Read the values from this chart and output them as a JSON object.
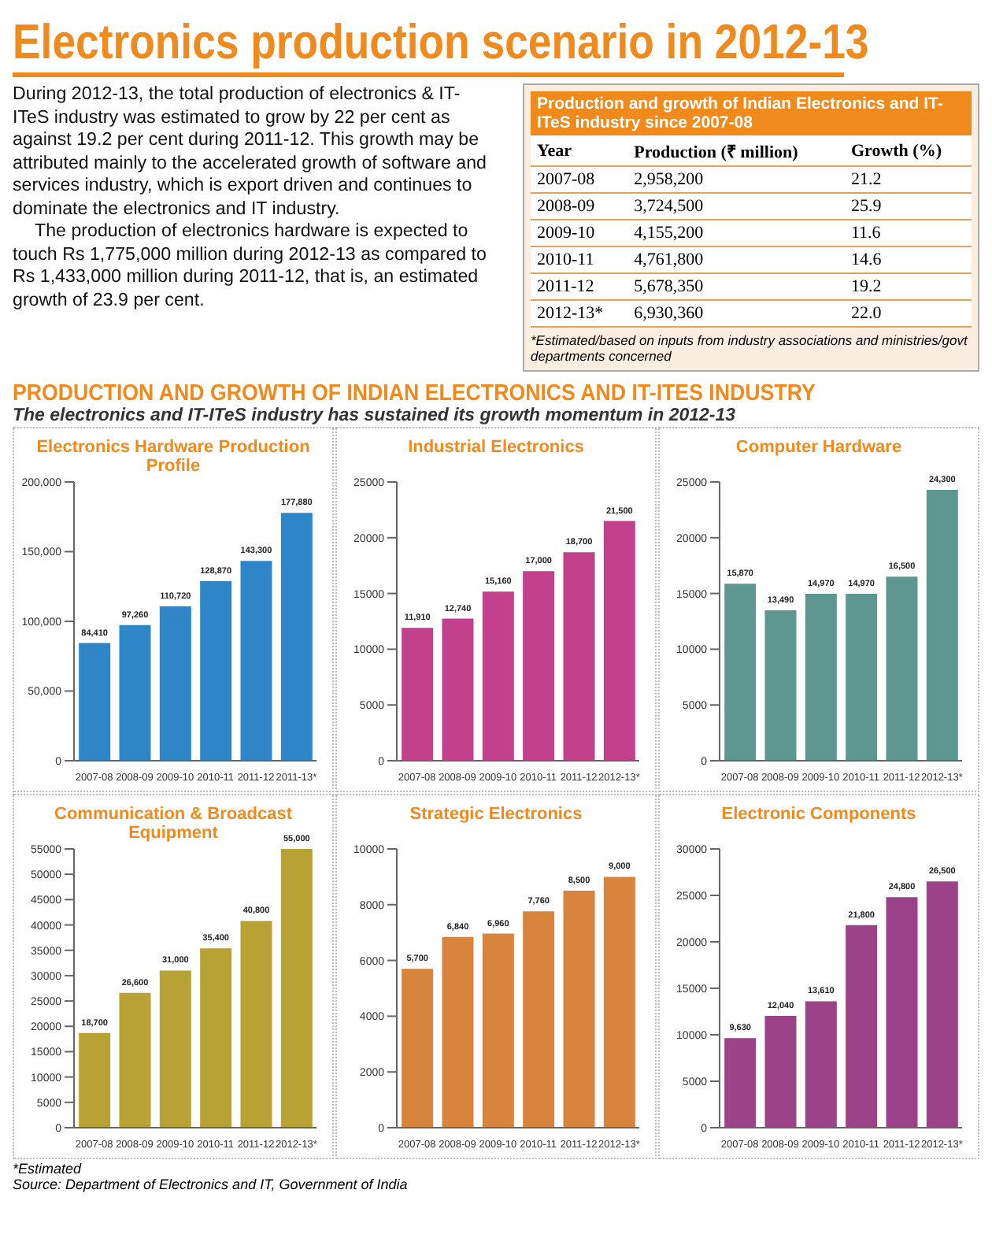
{
  "chart_data": [
    {
      "type": "other",
      "title": "Electronics production scenario in 2012-13",
      "annotations": [
        "During 2012-13, the total production of electronics & IT-ITeS industry was estimated to grow by 22 per cent as against 19.2 per cent during 2011-12. This growth may be attributed mainly to the accelerated growth of software and services industry, which is export driven and continues to dominate the electronics and IT industry.",
        "The production of electronics hardware is expected to touch Rs 1,775,000 million during 2012-13 as compared to Rs 1,433,000 million during 2011-12, that is, an estimated growth of 23.9 per cent."
      ]
    },
    {
      "type": "other",
      "title": "Production and growth of Indian Electronics and IT-ITeS industry since 2007-08",
      "xlabel": "Year",
      "categories": [
        "2007-08",
        "2008-09",
        "2009-10",
        "2010-11",
        "2011-12",
        "2012-13*"
      ],
      "series": [
        {
          "name": "Production (₹ million)",
          "color": "#ffffff",
          "values": [
            2958200,
            3724500,
            4155200,
            4761800,
            5678350,
            6930360
          ],
          "value_labels": [
            "2,958,200",
            "3,724,500",
            "4,155,200",
            "4,761,800",
            "5,678,350",
            "6,930,360"
          ]
        },
        {
          "name": "Growth (%)",
          "color": "#ffffff",
          "values": [
            21.2,
            25.9,
            11.6,
            14.6,
            19.2,
            22.0
          ],
          "value_labels": [
            "21.2",
            "25.9",
            "11.6",
            "14.6",
            "19.2",
            "22.0"
          ]
        }
      ],
      "annotations": [
        "*Estimated/based on inputs from industry associations and ministries/govt departments concerned"
      ]
    },
    {
      "type": "other",
      "title": "PRODUCTION AND GROWTH OF INDIAN ELECTRONICS AND IT-ITES INDUSTRY",
      "subtitle": "The electronics and IT-ITeS industry has sustained its growth momentum in 2012-13"
    },
    {
      "type": "bar",
      "title": "Electronics Hardware Production Profile",
      "categories": [
        "2007-08",
        "2008-09",
        "2009-10",
        "2010-11",
        "2011-12",
        "2011-13*"
      ],
      "color": "#2e86c9",
      "values": [
        84410,
        97260,
        110720,
        128870,
        143300,
        177880
      ],
      "value_labels": [
        "84,410",
        "97,260",
        "110,720",
        "128,870",
        "143,300",
        "177,880"
      ],
      "ylim": [
        0,
        200000
      ],
      "yticks": [
        {
          "value": 0,
          "label": "0"
        },
        {
          "value": 50000,
          "label": "50,000"
        },
        {
          "value": 100000,
          "label": "100,000"
        },
        {
          "value": 150000,
          "label": "150,000"
        },
        {
          "value": 200000,
          "label": "200,000"
        }
      ]
    },
    {
      "type": "bar",
      "title": "Industrial Electronics",
      "categories": [
        "2007-08",
        "2008-09",
        "2009-10",
        "2010-11",
        "2011-12",
        "2012-13*"
      ],
      "color": "#c2408c",
      "values": [
        11910,
        12740,
        15160,
        17000,
        18700,
        21500
      ],
      "value_labels": [
        "11,910",
        "12,740",
        "15,160",
        "17,000",
        "18,700",
        "21,500"
      ],
      "ylim": [
        0,
        25000
      ],
      "yticks": [
        0,
        5000,
        10000,
        15000,
        20000,
        25000
      ]
    },
    {
      "type": "bar",
      "title": "Computer Hardware",
      "categories": [
        "2007-08",
        "2008-09",
        "2009-10",
        "2010-11",
        "2011-12",
        "2012-13*"
      ],
      "color": "#5e978f",
      "values": [
        15870,
        13490,
        14970,
        14970,
        16500,
        24300
      ],
      "value_labels": [
        "15,870",
        "13,490",
        "14,970",
        "14,970",
        "16,500",
        "24,300"
      ],
      "ylim": [
        0,
        25000
      ],
      "yticks": [
        0,
        5000,
        10000,
        15000,
        20000,
        25000
      ]
    },
    {
      "type": "bar",
      "title": "Communication & Broadcast Equipment",
      "categories": [
        "2007-08",
        "2008-09",
        "2009-10",
        "2010-11",
        "2011-12",
        "2012-13*"
      ],
      "color": "#b7a233",
      "values": [
        18700,
        26600,
        31000,
        35400,
        40800,
        55000
      ],
      "value_labels": [
        "18,700",
        "26,600",
        "31,000",
        "35,400",
        "40,800",
        "55,000"
      ],
      "ylim": [
        0,
        55000
      ],
      "yticks": [
        0,
        5000,
        10000,
        15000,
        20000,
        25000,
        30000,
        35000,
        40000,
        45000,
        50000,
        55000
      ]
    },
    {
      "type": "bar",
      "title": "Strategic Electronics",
      "categories": [
        "2007-08",
        "2008-09",
        "2009-10",
        "2010-11",
        "2011-12",
        "2012-13*"
      ],
      "color": "#d9843c",
      "values": [
        5700,
        6840,
        6960,
        7760,
        8500,
        9000
      ],
      "value_labels": [
        "5,700",
        "6,840",
        "6,960",
        "7,760",
        "8,500",
        "9,000"
      ],
      "ylim": [
        0,
        10000
      ],
      "yticks": [
        0,
        2000,
        4000,
        6000,
        8000,
        10000
      ]
    },
    {
      "type": "bar",
      "title": "Electronic Components",
      "categories": [
        "2007-08",
        "2008-09",
        "2009-10",
        "2010-11",
        "2011-12",
        "2012-13*"
      ],
      "color": "#9c4288",
      "values": [
        9630,
        12040,
        13610,
        21800,
        24800,
        26500
      ],
      "value_labels": [
        "9,630",
        "12,040",
        "13,610",
        "21,800",
        "24,800",
        "26,500"
      ],
      "ylim": [
        0,
        30000
      ],
      "yticks": [
        0,
        5000,
        10000,
        15000,
        20000,
        25000,
        30000
      ]
    },
    {
      "type": "other",
      "annotations": [
        "*Estimated",
        "Source: Department of Electronics and IT, Government of India"
      ]
    }
  ]
}
